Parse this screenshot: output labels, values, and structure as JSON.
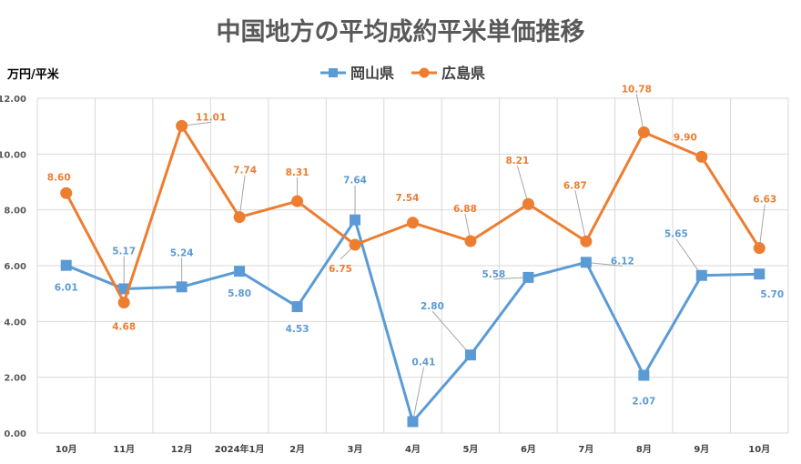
{
  "chart_data": {
    "type": "line",
    "title": "中国地方の平均成約平米単価推移",
    "ylabel": "万円/平米",
    "xlabel": "",
    "ylim": [
      0,
      12
    ],
    "yticks": [
      "0.00",
      "2.00",
      "4.00",
      "6.00",
      "8.00",
      "10.00",
      "12.00"
    ],
    "grid": true,
    "legend_position": "top-center",
    "categories": [
      "10月",
      "11月",
      "12月",
      "2024年1月",
      "2月",
      "3月",
      "4月",
      "5月",
      "6月",
      "7月",
      "8月",
      "9月",
      "10月"
    ],
    "series": [
      {
        "name": "岡山県",
        "color": "#5B9BD5",
        "marker": "square",
        "values": [
          6.01,
          5.17,
          5.24,
          5.8,
          4.53,
          7.64,
          0.41,
          2.8,
          5.58,
          6.12,
          2.07,
          5.65,
          5.7
        ],
        "labels": [
          "6.01",
          "5.17",
          "5.24",
          "5.80",
          "4.53",
          "7.64",
          "0.41",
          "2.80",
          "5.58",
          "6.12",
          "2.07",
          "5.65",
          "5.70"
        ]
      },
      {
        "name": "広島県",
        "color": "#ED7D31",
        "marker": "circle",
        "values": [
          8.6,
          4.68,
          11.01,
          7.74,
          8.31,
          6.75,
          7.54,
          6.88,
          8.21,
          6.87,
          10.78,
          9.9,
          6.63
        ],
        "labels": [
          "8.60",
          "4.68",
          "11.01",
          "7.74",
          "8.31",
          "6.75",
          "7.54",
          "6.88",
          "8.21",
          "6.87",
          "10.78",
          "9.90",
          "6.63"
        ]
      }
    ]
  }
}
